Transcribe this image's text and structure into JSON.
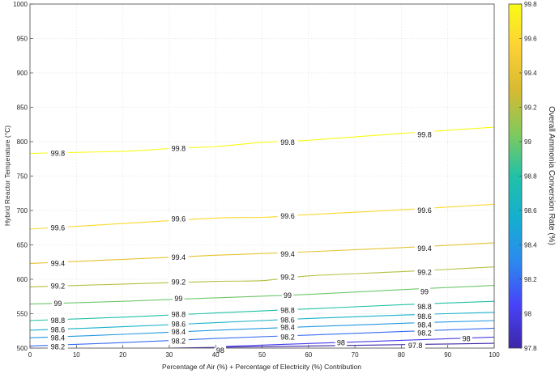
{
  "chart_data": {
    "type": "contour",
    "xlabel": "Percentage of Air (%) + Percentage of Electricity (%) Contribution",
    "ylabel": "Hybrid Reactor Temperature (°C)",
    "colorbar_label": "Overall Ammonia Conversion Rate (%)",
    "xlim": [
      0,
      100
    ],
    "ylim": [
      500,
      1000
    ],
    "xticks": [
      0,
      10,
      20,
      30,
      40,
      50,
      60,
      70,
      80,
      90,
      100
    ],
    "yticks": [
      500,
      550,
      600,
      650,
      700,
      750,
      800,
      850,
      900,
      950,
      1000
    ],
    "colorbar_range": [
      97.8,
      99.8
    ],
    "colorbar_ticks": [
      97.8,
      98,
      98.2,
      98.4,
      98.6,
      98.8,
      99,
      99.2,
      99.4,
      99.6,
      99.8
    ],
    "colorbar_tick_labels": [
      "97.8",
      "98",
      "98.2",
      "98.4",
      "98.6",
      "98.8",
      "99",
      "99.2",
      "99.4",
      "99.6",
      "99.8"
    ],
    "colormap": [
      "#3e26a8",
      "#4743f8",
      "#2c89ee",
      "#15aed1",
      "#21c1a7",
      "#82c95c",
      "#d7ba31",
      "#fcd135",
      "#f9fb15"
    ],
    "grid": true,
    "contours": [
      {
        "level": 97.8,
        "label": "97.8",
        "x": [
          30,
          45,
          60,
          75,
          85,
          100
        ],
        "y": [
          500,
          501.5,
          503,
          504.5,
          505.5,
          507
        ],
        "label_points": [
          [
            83,
            504
          ]
        ]
      },
      {
        "level": 98,
        "label": "98",
        "x": [
          40,
          55,
          70,
          85,
          100
        ],
        "y": [
          502,
          505.5,
          509,
          512.5,
          516
        ],
        "label_points": [
          [
            41,
            497
          ],
          [
            67,
            508
          ],
          [
            94,
            514
          ]
        ]
      },
      {
        "level": 98.2,
        "label": "98.2",
        "x": [
          0,
          20,
          40,
          60,
          80,
          100
        ],
        "y": [
          503,
          508,
          514,
          519,
          524,
          529
        ],
        "label_points": [
          [
            6,
            502
          ],
          [
            32,
            510
          ],
          [
            55.5,
            516
          ],
          [
            85,
            522
          ]
        ]
      },
      {
        "level": 98.4,
        "label": "98.4",
        "x": [
          0,
          20,
          40,
          60,
          80,
          100
        ],
        "y": [
          515,
          520,
          526,
          531,
          536,
          540
        ],
        "label_points": [
          [
            6,
            515
          ],
          [
            32,
            524
          ],
          [
            55.5,
            530
          ],
          [
            85,
            534
          ]
        ]
      },
      {
        "level": 98.6,
        "label": "98.6",
        "x": [
          0,
          20,
          40,
          60,
          80,
          100
        ],
        "y": [
          526,
          531,
          537,
          543,
          548,
          552
        ],
        "label_points": [
          [
            6,
            527
          ],
          [
            32,
            535
          ],
          [
            55.5,
            541
          ],
          [
            85,
            546
          ]
        ]
      },
      {
        "level": 98.8,
        "label": "98.8",
        "x": [
          0,
          20,
          40,
          60,
          80,
          100
        ],
        "y": [
          540,
          545,
          551,
          557,
          563,
          568
        ],
        "label_points": [
          [
            6,
            540
          ],
          [
            32,
            549
          ],
          [
            55.5,
            555
          ],
          [
            85,
            560
          ]
        ]
      },
      {
        "level": 99,
        "label": "99",
        "x": [
          0,
          20,
          40,
          60,
          80,
          100
        ],
        "y": [
          564,
          568,
          573,
          578,
          585,
          591
        ],
        "label_points": [
          [
            6,
            565
          ],
          [
            32,
            572
          ],
          [
            55.5,
            577
          ],
          [
            85,
            582
          ]
        ]
      },
      {
        "level": 99.2,
        "label": "99.2",
        "x": [
          0,
          20,
          40,
          50,
          60,
          80,
          100
        ],
        "y": [
          589,
          593,
          597,
          598,
          605,
          611,
          618
        ],
        "label_points": [
          [
            6,
            590
          ],
          [
            32,
            596
          ],
          [
            55.5,
            603
          ],
          [
            85,
            610
          ]
        ]
      },
      {
        "level": 99.4,
        "label": "99.4",
        "x": [
          0,
          20,
          40,
          60,
          80,
          100
        ],
        "y": [
          623,
          629,
          635,
          640,
          646,
          653
        ],
        "label_points": [
          [
            6,
            623
          ],
          [
            32,
            632
          ],
          [
            55.5,
            637
          ],
          [
            85,
            645
          ]
        ]
      },
      {
        "level": 99.6,
        "label": "99.6",
        "x": [
          0,
          20,
          40,
          50,
          60,
          80,
          100
        ],
        "y": [
          673,
          681,
          689,
          690,
          694,
          701,
          709
        ],
        "label_points": [
          [
            6,
            675
          ],
          [
            32,
            688
          ],
          [
            55.5,
            692
          ],
          [
            85,
            700
          ]
        ]
      },
      {
        "level": 99.8,
        "label": "99.8",
        "x": [
          0,
          20,
          30,
          40,
          50,
          60,
          80,
          100
        ],
        "y": [
          783,
          786,
          790,
          793,
          799,
          802,
          812,
          821
        ],
        "label_points": [
          [
            6,
            783
          ],
          [
            32,
            790
          ],
          [
            55.5,
            799
          ],
          [
            85,
            810
          ]
        ]
      }
    ]
  }
}
